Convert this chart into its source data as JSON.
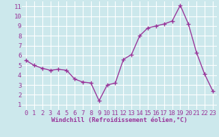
{
  "x": [
    0,
    1,
    2,
    3,
    4,
    5,
    6,
    7,
    8,
    9,
    10,
    11,
    12,
    13,
    14,
    15,
    16,
    17,
    18,
    19,
    20,
    21,
    22,
    23
  ],
  "y": [
    5.5,
    5.0,
    4.7,
    4.5,
    4.6,
    4.5,
    3.6,
    3.3,
    3.2,
    1.4,
    3.0,
    3.2,
    5.6,
    6.1,
    8.0,
    8.8,
    9.0,
    9.2,
    9.5,
    11.1,
    9.2,
    6.3,
    4.1,
    2.4
  ],
  "line_color": "#993399",
  "marker": "+",
  "marker_color": "#993399",
  "bg_color": "#cce8ec",
  "grid_color": "#ffffff",
  "xlabel": "Windchill (Refroidissement éolien,°C)",
  "xlabel_color": "#993399",
  "tick_color": "#993399",
  "xlim": [
    -0.5,
    23.5
  ],
  "ylim": [
    0.5,
    11.5
  ],
  "yticks": [
    1,
    2,
    3,
    4,
    5,
    6,
    7,
    8,
    9,
    10,
    11
  ],
  "xticks": [
    0,
    1,
    2,
    3,
    4,
    5,
    6,
    7,
    8,
    9,
    10,
    11,
    12,
    13,
    14,
    15,
    16,
    17,
    18,
    19,
    20,
    21,
    22,
    23
  ],
  "xlabel_fontsize": 6.5,
  "tick_fontsize": 6.5,
  "line_width": 1.0,
  "marker_size": 4
}
